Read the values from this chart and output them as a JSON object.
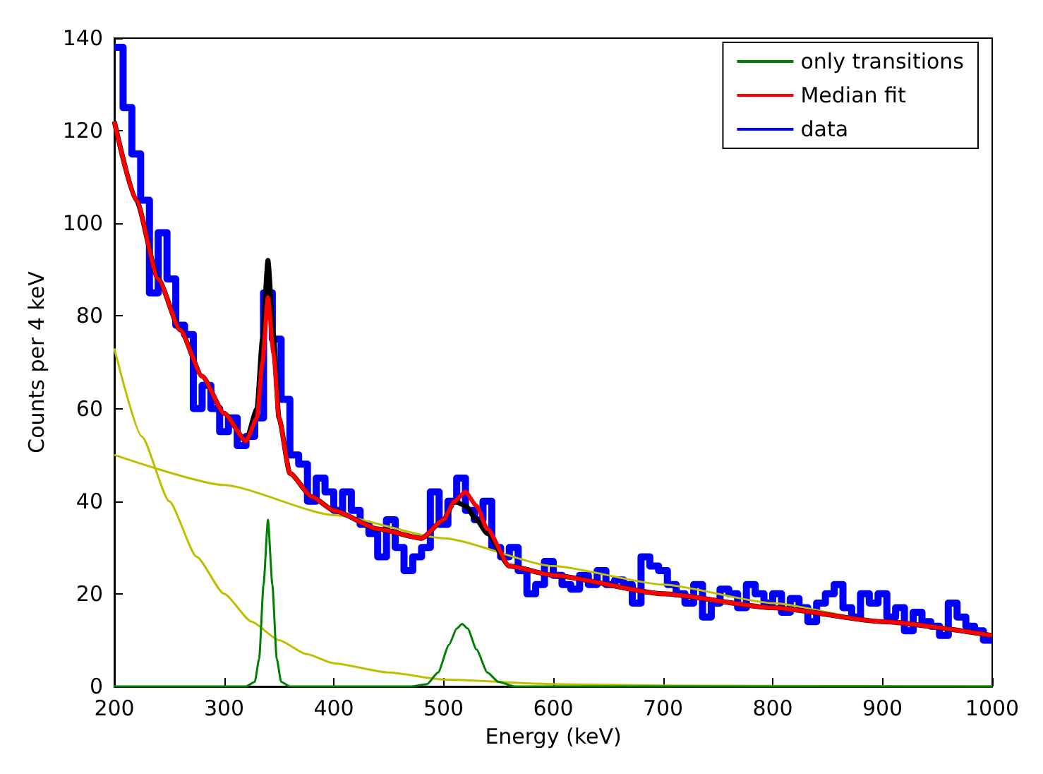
{
  "chart_data": {
    "type": "line",
    "xlabel": "Energy (keV)",
    "ylabel": "Counts per 4 keV",
    "xlim": [
      200,
      1000
    ],
    "ylim": [
      0,
      140
    ],
    "xticks": [
      200,
      300,
      400,
      500,
      600,
      700,
      800,
      900,
      1000
    ],
    "yticks": [
      0,
      20,
      40,
      60,
      80,
      100,
      120,
      140
    ],
    "grid": false,
    "legend": "top right",
    "marker": "none",
    "line_style": "solid",
    "series": [
      {
        "color": "#bfbf00",
        "x": [
          200,
          300,
          400,
          500,
          600,
          700,
          800,
          900,
          1000
        ],
        "values": [
          50,
          43.5,
          37,
          32,
          26,
          22,
          18,
          14,
          11
        ]
      },
      {
        "color": "#bfbf00",
        "x": [
          200,
          225,
          250,
          275,
          300,
          325,
          350,
          375,
          400,
          450,
          500,
          600,
          700,
          800,
          1000
        ],
        "values": [
          73,
          54,
          40,
          28,
          20,
          14,
          10,
          7,
          5,
          3,
          1.5,
          0.5,
          0.2,
          0.1,
          0
        ]
      },
      {
        "name": "only transitions",
        "color": "#008000",
        "x": [
          200,
          320,
          328,
          332,
          336,
          340,
          344,
          348,
          352,
          360,
          470,
          485,
          495,
          505,
          512,
          517,
          522,
          530,
          540,
          550,
          565,
          1000
        ],
        "values": [
          0,
          0,
          1,
          6,
          22,
          36,
          22,
          6,
          1,
          0,
          0,
          0.5,
          3,
          9,
          12.5,
          13.5,
          12.5,
          8,
          3,
          1,
          0,
          0
        ]
      },
      {
        "color": "#000000",
        "x": [
          200,
          220,
          240,
          260,
          280,
          300,
          320,
          330,
          335,
          340,
          345,
          350,
          360,
          380,
          400,
          440,
          480,
          500,
          510,
          520,
          530,
          540,
          560,
          600,
          700,
          800,
          900,
          1000
        ],
        "values": [
          122,
          105,
          88,
          77,
          67,
          59,
          53,
          60,
          75,
          92,
          76,
          58,
          46,
          41,
          38,
          34,
          32,
          36,
          40,
          39,
          36,
          33,
          26,
          24,
          20,
          17,
          14,
          11
        ]
      },
      {
        "name": "Median fit",
        "color": "#ff0000",
        "x": [
          200,
          220,
          240,
          260,
          280,
          300,
          320,
          330,
          335,
          340,
          345,
          350,
          360,
          380,
          400,
          440,
          480,
          500,
          510,
          520,
          530,
          540,
          560,
          600,
          700,
          800,
          900,
          1000
        ],
        "values": [
          122,
          105,
          88,
          77,
          67,
          59,
          53,
          58,
          70,
          84,
          72,
          58,
          46,
          41,
          38,
          34,
          32,
          36,
          40,
          42,
          39,
          34,
          26,
          24,
          20,
          17,
          14,
          11
        ]
      },
      {
        "name": "data",
        "type": "step",
        "color": "#0000ff",
        "x": [
          200,
          208,
          216,
          224,
          232,
          240,
          248,
          256,
          264,
          272,
          280,
          288,
          296,
          304,
          312,
          320,
          328,
          336,
          344,
          352,
          360,
          368,
          376,
          384,
          392,
          400,
          408,
          416,
          424,
          432,
          440,
          448,
          456,
          464,
          472,
          480,
          488,
          496,
          504,
          512,
          520,
          528,
          536,
          544,
          552,
          560,
          568,
          576,
          584,
          592,
          600,
          608,
          616,
          624,
          632,
          640,
          648,
          656,
          664,
          672,
          680,
          688,
          696,
          704,
          712,
          720,
          728,
          736,
          744,
          752,
          760,
          768,
          776,
          784,
          792,
          800,
          808,
          816,
          824,
          832,
          840,
          848,
          856,
          864,
          872,
          880,
          888,
          896,
          904,
          912,
          920,
          928,
          936,
          944,
          952,
          960,
          968,
          976,
          984,
          992,
          1000
        ],
        "values": [
          138,
          125,
          115,
          105,
          85,
          98,
          88,
          78,
          76,
          60,
          65,
          60,
          55,
          58,
          52,
          54,
          58,
          85,
          75,
          62,
          50,
          48,
          40,
          45,
          42,
          38,
          42,
          38,
          35,
          33,
          28,
          36,
          30,
          25,
          28,
          30,
          42,
          35,
          40,
          45,
          38,
          36,
          40,
          30,
          28,
          30,
          25,
          20,
          22,
          27,
          24,
          22,
          21,
          24,
          22,
          25,
          22,
          23,
          22,
          18,
          28,
          26,
          25,
          22,
          20,
          18,
          22,
          15,
          18,
          21,
          20,
          17,
          22,
          20,
          18,
          20,
          16,
          19,
          17,
          14,
          18,
          20,
          22,
          17,
          15,
          20,
          18,
          20,
          15,
          17,
          12,
          16,
          14,
          13,
          11,
          18,
          15,
          13,
          12,
          10,
          10
        ]
      }
    ]
  }
}
